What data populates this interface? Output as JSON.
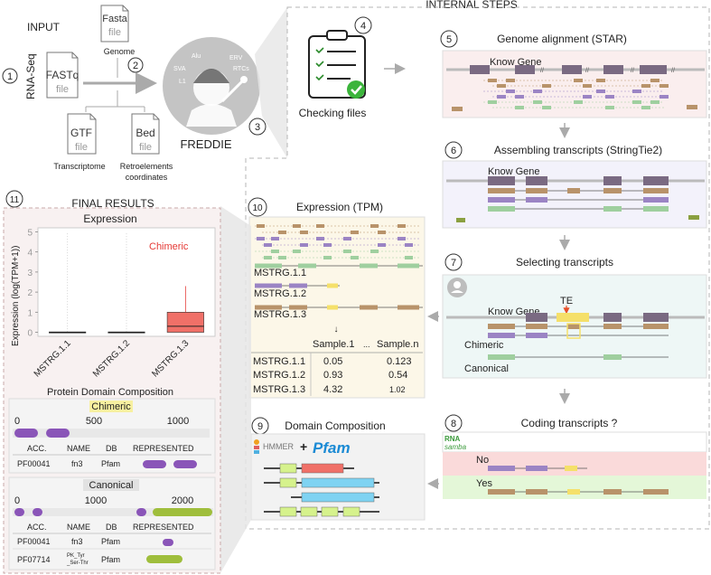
{
  "input": {
    "title": "INPUT",
    "rna_seq": "RNA-Seq",
    "fastq_name": "FASTq",
    "fasta_name": "Fasta",
    "gtf_name": "GTF",
    "bed_name": "Bed",
    "file_word": "file",
    "genome_label": "Genome",
    "transcriptome_label": "Transcriptome",
    "retro_label_1": "Retroelements",
    "retro_label_2": "coordinates",
    "num_1": "1",
    "num_2": "2"
  },
  "freddie": {
    "title": "FREDDIE",
    "num_3": "3",
    "logo_words": [
      "Alu",
      "SVA",
      "ERV",
      "L1",
      "RTCs"
    ]
  },
  "internal": {
    "title": "INTERNAL STEPS",
    "step4": {
      "num": "4",
      "label": "Checking files"
    },
    "step5": {
      "num": "5",
      "label": "Genome alignment (STAR)",
      "gene": "Know Gene"
    },
    "step6": {
      "num": "6",
      "label": "Assembling transcripts (StringTie2)",
      "gene": "Know Gene"
    },
    "step7": {
      "num": "7",
      "label": "Selecting transcripts",
      "gene": "Know Gene",
      "te": "TE",
      "chimeric": "Chimeric",
      "canonical": "Canonical"
    },
    "step8": {
      "num": "8",
      "label": "Coding transcripts ?",
      "logo_top": "RNA",
      "logo_bottom": "samba",
      "no": "No",
      "yes": "Yes"
    },
    "step9": {
      "num": "9",
      "label": "Domain Composition",
      "hmmer": "HMMER",
      "plus": "+",
      "pfam": "Pfam"
    },
    "step10": {
      "num": "10",
      "label": "Expression (TPM)",
      "transcripts": [
        "MSTRG.1.1",
        "MSTRG.1.2",
        "MSTRG.1.3"
      ],
      "arrow": "↓",
      "col1": "Sample.1",
      "dots": "...",
      "col2": "Sample.n",
      "table": [
        {
          "id": "MSTRG.1.1",
          "s1": "0.05",
          "sn": "0.123"
        },
        {
          "id": "MSTRG.1.2",
          "s1": "0.93",
          "sn": "0.54"
        },
        {
          "id": "MSTRG.1.3",
          "s1": "4.32",
          "sn": "1.02"
        }
      ]
    }
  },
  "final": {
    "num": "11",
    "title": "FINAL RESULTS",
    "expression_title": "Expression",
    "chimeric_label": "Chimeric",
    "ylabel": "Expression (log(TPM+1))",
    "protein_title": "Protein Domain Composition",
    "chimeric_box": {
      "heading": "Chimeric",
      "ticks": [
        "0",
        "500",
        "1000"
      ],
      "headers": [
        "ACC.",
        "NAME",
        "DB",
        "REPRESENTED"
      ],
      "rows": [
        {
          "acc": "PF00041",
          "name": "fn3",
          "db": "Pfam"
        }
      ]
    },
    "canonical_box": {
      "heading": "Canonical",
      "ticks": [
        "0",
        "1000",
        "2000"
      ],
      "headers": [
        "ACC.",
        "NAME",
        "DB",
        "REPRESENTED"
      ],
      "rows": [
        {
          "acc": "PF00041",
          "name": "fn3",
          "db": "Pfam"
        },
        {
          "acc": "PF07714",
          "name_1": "PK_Tyr",
          "name_2": "_Ser-Thr",
          "db": "Pfam"
        }
      ]
    }
  },
  "colors": {
    "brown": "#b8936a",
    "purple": "#9b84c4",
    "green": "#9fcf9f",
    "gene": "#7a6a82",
    "yellow": "#f5e06a",
    "red_box": "#f07068",
    "domain_purple": "#8a55b8",
    "domain_green": "#9fbe3c",
    "cyan": "#7fd3f2",
    "lime": "#d6f28c"
  },
  "chart_data": {
    "type": "box",
    "title": "Expression",
    "ylabel": "Expression (log(TPM+1))",
    "categories": [
      "MSTRG.1.1",
      "MSTRG.1.2",
      "MSTRG.1.3"
    ],
    "yticks": [
      0,
      1,
      2,
      3,
      4,
      5
    ],
    "ylim": [
      -0.2,
      5.2
    ],
    "boxes": [
      {
        "category": "MSTRG.1.1",
        "q1": 0.0,
        "median": 0.0,
        "q3": 0.02,
        "whisker_high": 5.0
      },
      {
        "category": "MSTRG.1.2",
        "q1": 0.0,
        "median": 0.0,
        "q3": 0.02,
        "whisker_high": 5.0
      },
      {
        "category": "MSTRG.1.3",
        "q1": 0.0,
        "median": 0.3,
        "q3": 1.0,
        "whisker_high": 2.3
      }
    ],
    "annotation": "Chimeric"
  }
}
